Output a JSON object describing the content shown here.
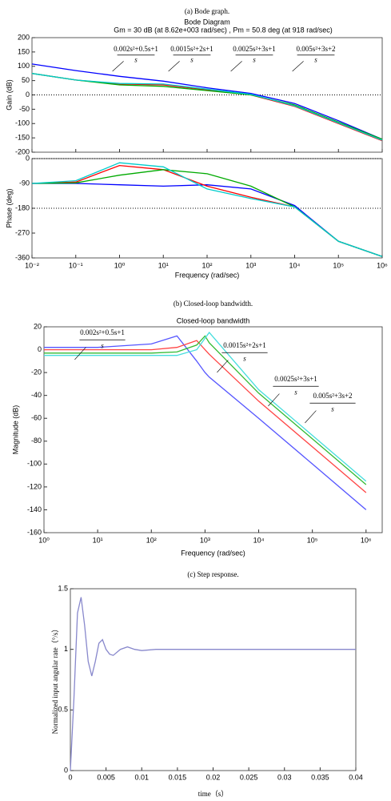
{
  "chart_data": [
    {
      "type": "line",
      "title": "(a) Bode graph.",
      "subtitle": "Bode Diagram",
      "annotation": "Gm = 30 dB (at 8.62e+003 rad/sec) ,  Pm = 50.8 deg (at 918 rad/sec)",
      "ylabel": "Gain (dB)",
      "xscale": "log",
      "xlim": [
        0.01,
        1000000
      ],
      "xticks": [
        0.01,
        0.1,
        1,
        10,
        100,
        1000,
        10000,
        100000,
        1000000
      ],
      "ylim": [
        -200,
        200
      ],
      "yticks": [
        200,
        150,
        100,
        50,
        0,
        -50,
        -100,
        -150,
        -200
      ],
      "transfer_functions": [
        {
          "numerator": "0.002s²+0.5s+1",
          "denominator": "s"
        },
        {
          "numerator": "0.0015s²+2s+1",
          "denominator": "s"
        },
        {
          "numerator": "0.0025s²+3s+1",
          "denominator": "s"
        },
        {
          "numerator": "0.005s²+3s+2",
          "denominator": "s"
        }
      ],
      "x": [
        0.01,
        0.1,
        1,
        10,
        100,
        1000,
        10000,
        100000,
        1000000
      ],
      "series": [
        {
          "color": "#0000ff",
          "values": [
            108,
            85,
            65,
            48,
            25,
            5,
            -30,
            -90,
            -155
          ]
        },
        {
          "color": "#ff0000",
          "values": [
            75,
            52,
            38,
            35,
            18,
            0,
            -40,
            -100,
            -160
          ]
        },
        {
          "color": "#00aa00",
          "values": [
            75,
            52,
            35,
            30,
            15,
            0,
            -35,
            -95,
            -155
          ]
        },
        {
          "color": "#00cccc",
          "values": [
            75,
            52,
            40,
            38,
            20,
            2,
            -38,
            -98,
            -158
          ]
        }
      ]
    },
    {
      "type": "line",
      "ylabel": "Phase (deg)",
      "xlabel": "Frequency   (rad/sec)",
      "xscale": "log",
      "xlim": [
        0.01,
        1000000
      ],
      "xticks": [
        {
          "value": 0.01,
          "label": "10⁻²"
        },
        {
          "value": 0.1,
          "label": "10⁻¹"
        },
        {
          "value": 1,
          "label": "10⁰"
        },
        {
          "value": 10,
          "label": "10¹"
        },
        {
          "value": 100,
          "label": "10²"
        },
        {
          "value": 1000,
          "label": "10³"
        },
        {
          "value": 10000,
          "label": "10⁴"
        },
        {
          "value": 100000,
          "label": "10⁵"
        },
        {
          "value": 1000000,
          "label": "10⁶"
        }
      ],
      "ylim": [
        -360,
        0
      ],
      "yticks": [
        0,
        -90,
        -180,
        -270,
        -360
      ],
      "x": [
        0.01,
        0.1,
        1,
        10,
        100,
        1000,
        10000,
        100000,
        1000000
      ],
      "series": [
        {
          "color": "#0000ff",
          "values": [
            -90,
            -90,
            -95,
            -100,
            -95,
            -110,
            -170,
            -300,
            -355
          ]
        },
        {
          "color": "#ff0000",
          "values": [
            -90,
            -85,
            -25,
            -40,
            -100,
            -140,
            -175,
            -300,
            -355
          ]
        },
        {
          "color": "#00aa00",
          "values": [
            -90,
            -88,
            -60,
            -40,
            -55,
            -100,
            -175,
            -300,
            -355
          ]
        },
        {
          "color": "#00cccc",
          "values": [
            -90,
            -80,
            -15,
            -30,
            -110,
            -145,
            -175,
            -300,
            -355
          ]
        }
      ]
    },
    {
      "type": "line",
      "title": "(b) Closed-loop bandwidth.",
      "subtitle": "Closed-loop bandwidth",
      "ylabel": "Magnitude (dB)",
      "xlabel": "Frequency  (rad/sec)",
      "xscale": "log",
      "xlim": [
        1,
        2000000
      ],
      "xticks": [
        {
          "value": 1,
          "label": "10⁰"
        },
        {
          "value": 10,
          "label": "10¹"
        },
        {
          "value": 100,
          "label": "10²"
        },
        {
          "value": 1000,
          "label": "10³"
        },
        {
          "value": 10000,
          "label": "10⁴"
        },
        {
          "value": 100000,
          "label": "10⁵"
        },
        {
          "value": 1000000,
          "label": "10⁶"
        }
      ],
      "ylim": [
        -160,
        20
      ],
      "yticks": [
        20,
        0,
        -20,
        -40,
        -60,
        -80,
        -100,
        -120,
        -140,
        -160
      ],
      "transfer_functions": [
        {
          "numerator": "0.002s²+0.5s+1",
          "denominator": "s"
        },
        {
          "numerator": "0.0015s²+2s+1",
          "denominator": "s"
        },
        {
          "numerator": "0.0025s²+3s+1",
          "denominator": "s"
        },
        {
          "numerator": "0.005s²+3s+2",
          "denominator": "s"
        }
      ],
      "x": [
        1,
        10,
        100,
        300,
        700,
        1000,
        1200,
        10000,
        100000,
        1000000
      ],
      "series": [
        {
          "color": "#5555ff",
          "values": [
            2,
            2,
            5,
            12,
            -10,
            -20,
            -24,
            -60,
            -100,
            -140
          ]
        },
        {
          "color": "#ff4444",
          "values": [
            0,
            0,
            0,
            2,
            8,
            0,
            -4,
            -45,
            -85,
            -125
          ]
        },
        {
          "color": "#33bb33",
          "values": [
            -3,
            -3,
            -3,
            -2,
            4,
            12,
            6,
            -38,
            -78,
            -118
          ]
        },
        {
          "color": "#44dddd",
          "values": [
            -5,
            -5,
            -5,
            -5,
            0,
            10,
            15,
            -35,
            -75,
            -115
          ]
        }
      ]
    },
    {
      "type": "line",
      "title": "(c) Step response.",
      "ylabel": "Normalized input angular rate（°/s）",
      "xlabel": "time（s）",
      "xlim": [
        0,
        0.04
      ],
      "xticks": [
        0,
        0.005,
        0.01,
        0.015,
        0.02,
        0.025,
        0.03,
        0.035,
        0.04
      ],
      "ylim": [
        0,
        1.5
      ],
      "yticks": [
        0,
        0.5,
        1,
        1.5
      ],
      "x": [
        0,
        0.0005,
        0.001,
        0.0015,
        0.002,
        0.0025,
        0.003,
        0.0035,
        0.004,
        0.0045,
        0.005,
        0.0055,
        0.006,
        0.007,
        0.008,
        0.009,
        0.01,
        0.012,
        0.015,
        0.02,
        0.03,
        0.04
      ],
      "series": [
        {
          "color": "#8888cc",
          "values": [
            0,
            0.6,
            1.3,
            1.43,
            1.2,
            0.9,
            0.78,
            0.9,
            1.05,
            1.08,
            1.0,
            0.96,
            0.95,
            1.0,
            1.02,
            1.0,
            0.99,
            1.0,
            1.0,
            1.0,
            1.0,
            1.0
          ]
        }
      ]
    }
  ]
}
